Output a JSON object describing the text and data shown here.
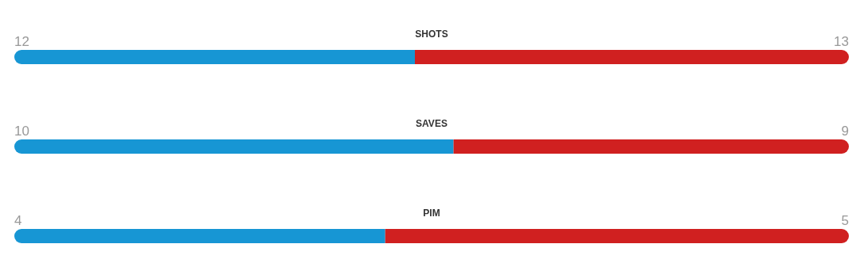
{
  "chart_data": [
    {
      "type": "bar",
      "orientation": "horizontal",
      "stacked": true,
      "data_labels": true,
      "categories": [
        "SHOTS"
      ],
      "series": [
        {
          "color": "#1796d4",
          "values": [
            12
          ]
        },
        {
          "color": "#d02020",
          "values": [
            13
          ]
        }
      ]
    },
    {
      "type": "bar",
      "orientation": "horizontal",
      "stacked": true,
      "data_labels": true,
      "categories": [
        "SAVES"
      ],
      "series": [
        {
          "color": "#1796d4",
          "values": [
            10
          ]
        },
        {
          "color": "#d02020",
          "values": [
            9
          ]
        }
      ]
    },
    {
      "type": "bar",
      "orientation": "horizontal",
      "stacked": true,
      "data_labels": true,
      "categories": [
        "PIM"
      ],
      "series": [
        {
          "color": "#1796d4",
          "values": [
            4
          ]
        },
        {
          "color": "#d02020",
          "values": [
            5
          ]
        }
      ]
    }
  ]
}
